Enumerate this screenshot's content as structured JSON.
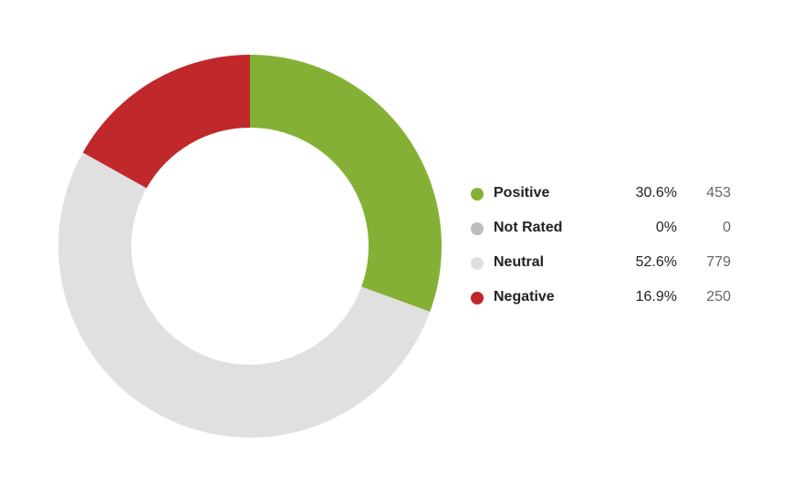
{
  "chart_data": {
    "type": "pie",
    "variant": "donut",
    "start": "top",
    "direction": "clockwise",
    "categories": [
      "Positive",
      "Not Rated",
      "Neutral",
      "Negative"
    ],
    "percentages": [
      "30.6%",
      "0%",
      "52.6%",
      "16.9%"
    ],
    "values": [
      453,
      0,
      779,
      250
    ],
    "colors": [
      "#84b135",
      "#bdbdbd",
      "#e0e0e0",
      "#c0282b"
    ],
    "legend_position": "right"
  },
  "legend": [
    {
      "label": "Positive",
      "pct": "30.6%",
      "count": "453",
      "color": "#84b135"
    },
    {
      "label": "Not Rated",
      "pct": "0%",
      "count": "0",
      "color": "#bdbdbd"
    },
    {
      "label": "Neutral",
      "pct": "52.6%",
      "count": "779",
      "color": "#e0e0e0"
    },
    {
      "label": "Negative",
      "pct": "16.9%",
      "count": "250",
      "color": "#c0282b"
    }
  ]
}
